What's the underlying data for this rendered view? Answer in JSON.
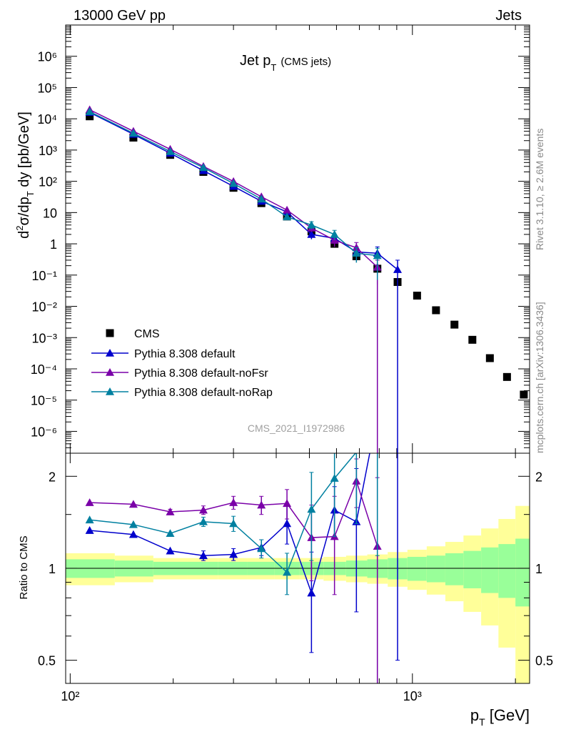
{
  "header": {
    "left": "13000 GeV pp",
    "right": "Jets"
  },
  "side_labels": {
    "rivet": "Rivet 3.1.10, ≥ 2.6M events",
    "mcplots": "mcplots.cern.ch [arXiv:1306.3436]"
  },
  "watermark": "CMS_2021_I1972986",
  "colors": {
    "data": "#000000",
    "default": "#0000cc",
    "noFsr": "#7a00a8",
    "noRap": "#0080a0",
    "band_inner": "#99ff99",
    "band_outer": "#ffff99"
  },
  "chart_data": [
    {
      "type": "scatter",
      "title_main": "Jet p",
      "title_sub": "T",
      "title_suffix": "(CMS jets)",
      "ylabel": "d²σ/dp_T dy [pb/GeV]",
      "xscale": "log",
      "yscale": "log",
      "xlim": [
        97,
        2200
      ],
      "ylim": [
        2e-07,
        10000000.0
      ],
      "y_tick_labels": [
        "10⁻⁶",
        "10⁻⁵",
        "10⁻⁴",
        "10⁻³",
        "10⁻²",
        "10⁻¹",
        "1",
        "10",
        "10²",
        "10³",
        "10⁴",
        "10⁵",
        "10⁶"
      ],
      "legend_position": "lower-left",
      "series": [
        {
          "name": "CMS",
          "marker": "square",
          "x": [
            114,
            153,
            196,
            245,
            300,
            362,
            430,
            507,
            592,
            686,
            790,
            905,
            1032,
            1172,
            1327,
            1497,
            1684,
            1890,
            2116
          ],
          "y": [
            12000,
            2500,
            700,
            200,
            62,
            20,
            7.5,
            2.5,
            1.0,
            0.4,
            0.16,
            0.06,
            0.022,
            0.0075,
            0.0026,
            0.00085,
            0.00022,
            5.5e-05,
            1.5e-05
          ]
        },
        {
          "name": "Pythia 8.308 default",
          "marker": "triangle",
          "x": [
            114,
            153,
            196,
            245,
            300,
            362,
            430,
            507,
            592,
            686,
            790,
            905
          ],
          "y": [
            16000,
            3200,
            790,
            220,
            69,
            23,
            10.5,
            2.0,
            1.5,
            0.55,
            0.5,
            0.15
          ],
          "err_low": [
            0,
            0,
            0,
            0,
            0,
            0,
            0,
            0.6,
            0.5,
            0.25,
            0.45,
            0.15
          ],
          "err_high": [
            0,
            0,
            0,
            0,
            0,
            0,
            0,
            0.6,
            0.5,
            0.25,
            0.3,
            0.15
          ]
        },
        {
          "name": "Pythia 8.308 default-noFsr",
          "marker": "triangle",
          "x": [
            114,
            153,
            196,
            245,
            300,
            362,
            430,
            507,
            592,
            686,
            790
          ],
          "y": [
            19500,
            4000,
            1060,
            300,
            99,
            32,
            12,
            3.2,
            1.3,
            0.75,
            0.18
          ],
          "err_low": [
            0,
            0,
            0,
            0,
            0,
            0,
            0,
            0.8,
            0.5,
            0.35,
            0.18
          ],
          "err_high": [
            0,
            0,
            0,
            0,
            0,
            0,
            0,
            0.8,
            0.5,
            0.35,
            0.12
          ]
        },
        {
          "name": "Pythia 8.308 default-noRap",
          "marker": "triangle",
          "x": [
            114,
            153,
            196,
            245,
            300,
            362,
            430,
            507,
            592,
            686,
            790
          ],
          "y": [
            17000,
            3450,
            900,
            275,
            85,
            27,
            7.3,
            4.0,
            2.0,
            0.5,
            0.42
          ],
          "err_low": [
            0,
            0,
            0,
            0,
            0,
            0,
            0,
            1.1,
            0.7,
            0.25,
            0.35
          ],
          "err_high": [
            0,
            0,
            0,
            0,
            0,
            0,
            0,
            1.1,
            0.7,
            0.25,
            0.3
          ]
        }
      ]
    },
    {
      "type": "line",
      "ylabel": "Ratio to CMS",
      "xlabel_main": "p",
      "xlabel_sub": "T",
      "xlabel_suffix": " [GeV]",
      "xscale": "log",
      "yscale": "log",
      "xlim": [
        97,
        2200
      ],
      "ylim": [
        0.42,
        2.38
      ],
      "y_tick_labels": [
        "0.5",
        "1",
        "2"
      ],
      "x_tick_labels": [
        "10²",
        "10³"
      ],
      "reference_line": 1,
      "band_edges": [
        97,
        135,
        175,
        220,
        270,
        330,
        395,
        468,
        550,
        640,
        738,
        847,
        967,
        1101,
        1248,
        1410,
        1588,
        1784,
        2000,
        2200
      ],
      "band_inner": [
        0.07,
        0.06,
        0.05,
        0.05,
        0.05,
        0.05,
        0.05,
        0.05,
        0.05,
        0.06,
        0.07,
        0.08,
        0.09,
        0.1,
        0.12,
        0.14,
        0.17,
        0.2,
        0.25
      ],
      "band_outer": [
        0.12,
        0.1,
        0.08,
        0.08,
        0.08,
        0.08,
        0.08,
        0.08,
        0.09,
        0.1,
        0.11,
        0.13,
        0.15,
        0.18,
        0.22,
        0.28,
        0.35,
        0.45,
        0.6
      ],
      "series": [
        {
          "name": "Pythia 8.308 default",
          "x": [
            114,
            153,
            196,
            245,
            300,
            362,
            430,
            507,
            592,
            686,
            790,
            905
          ],
          "y": [
            1.33,
            1.29,
            1.14,
            1.1,
            1.11,
            1.17,
            1.4,
            0.83,
            1.55,
            1.42,
            3.2,
            2.5
          ],
          "err": [
            0,
            0,
            0,
            0.04,
            0.05,
            0.07,
            0.2,
            0.3,
            0.3,
            0.7,
            2.8,
            2.0
          ]
        },
        {
          "name": "Pythia 8.308 default-noFsr",
          "x": [
            114,
            153,
            196,
            245,
            300,
            362,
            430,
            507,
            592,
            686,
            790
          ],
          "y": [
            1.64,
            1.62,
            1.53,
            1.55,
            1.64,
            1.61,
            1.63,
            1.26,
            1.27,
            1.93,
            1.18
          ],
          "err": [
            0,
            0,
            0.03,
            0.05,
            0.08,
            0.11,
            0.18,
            0.35,
            0.45,
            0.35,
            0.8
          ]
        },
        {
          "name": "Pythia 8.308 default-noRap",
          "x": [
            114,
            153,
            196,
            245,
            300,
            362,
            430,
            507,
            592,
            686,
            790
          ],
          "y": [
            1.44,
            1.39,
            1.3,
            1.42,
            1.4,
            1.16,
            0.97,
            1.56,
            1.97,
            2.4,
            2.6
          ],
          "err": [
            0,
            0,
            0,
            0.05,
            0.08,
            0.08,
            0.15,
            0.5,
            0.7,
            1.0,
            1.5
          ]
        }
      ]
    }
  ]
}
